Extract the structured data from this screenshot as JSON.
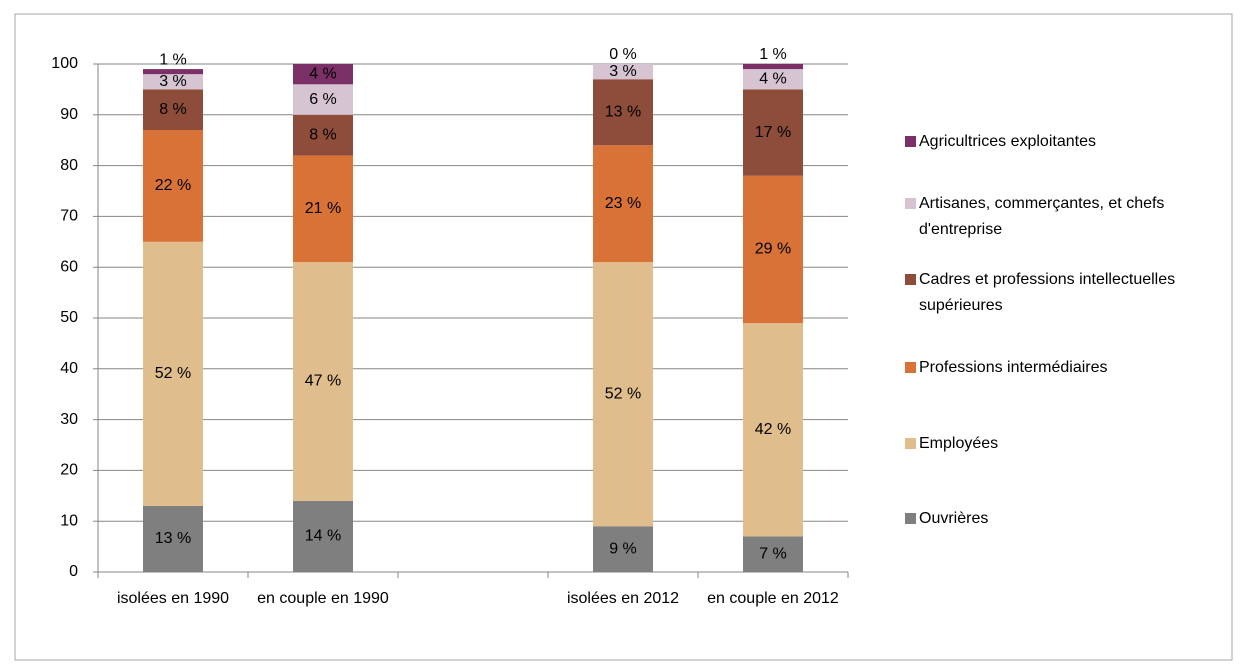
{
  "chart_data": {
    "type": "stacked-bar",
    "categories": [
      "isolées en 1990",
      "en couple en 1990",
      null,
      "isolées en 2012",
      "en couple en 2012"
    ],
    "series": [
      {
        "name": "Ouvrières",
        "color": "#7f7f7f",
        "values": [
          13,
          14,
          null,
          9,
          7
        ],
        "value_labels": [
          "13 %",
          "14 %",
          null,
          "9 %",
          "7 %"
        ]
      },
      {
        "name": "Employées",
        "color": "#e0bd8c",
        "values": [
          52,
          47,
          null,
          52,
          42
        ],
        "value_labels": [
          "52 %",
          "47 %",
          null,
          "52 %",
          "42 %"
        ]
      },
      {
        "name": "Professions intermédiaires",
        "color": "#d97236",
        "values": [
          22,
          21,
          null,
          23,
          29
        ],
        "value_labels": [
          "22 %",
          "21 %",
          null,
          "23 %",
          "29 %"
        ]
      },
      {
        "name": "Cadres et professions intellectuelles supérieures",
        "color": "#8e4c3a",
        "values": [
          8,
          8,
          null,
          13,
          17
        ],
        "value_labels": [
          "8 %",
          "8 %",
          null,
          "13 %",
          "17 %"
        ]
      },
      {
        "name": "Artisanes, commerçantes, et chefs d'entreprise",
        "color": "#d6c4d2",
        "values": [
          3,
          6,
          null,
          3,
          4
        ],
        "value_labels": [
          "3 %",
          "6 %",
          null,
          "3 %",
          "4 %"
        ]
      },
      {
        "name": "Agricultrices exploitantes",
        "color": "#7b3068",
        "values": [
          1,
          4,
          null,
          0,
          1
        ],
        "value_labels": [
          "1 %",
          "4 %",
          null,
          "0 %",
          "1 %"
        ]
      }
    ],
    "ylim": [
      0,
      100
    ],
    "yticks": [
      0,
      10,
      20,
      30,
      40,
      50,
      60,
      70,
      80,
      90,
      100
    ],
    "grid": true,
    "legend": "right"
  }
}
